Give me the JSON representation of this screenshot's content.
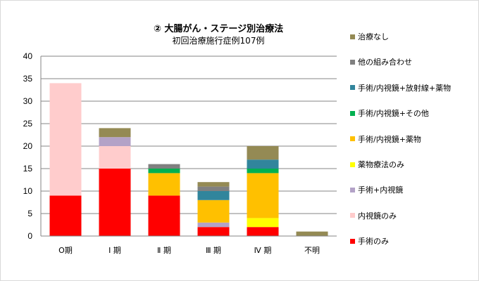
{
  "chart_data": {
    "type": "bar",
    "stacked": true,
    "title": "② 大腸がん・ステージ別治療法",
    "subtitle": "初回治療施行症例107例",
    "xlabel": "",
    "ylabel": "",
    "ylim": [
      0,
      40
    ],
    "yticks": [
      0,
      5,
      10,
      15,
      20,
      25,
      30,
      35,
      40
    ],
    "grid": true,
    "legend_position": "right",
    "categories": [
      "O期",
      "Ⅰ 期",
      "Ⅱ 期",
      "Ⅲ 期",
      "Ⅳ 期",
      "不明"
    ],
    "series": [
      {
        "name": "手術のみ",
        "color": "#FF0000",
        "values": [
          9,
          15,
          9,
          2,
          2,
          0
        ]
      },
      {
        "name": "内視鏡のみ",
        "color": "#FFCCCC",
        "values": [
          25,
          5,
          0,
          0,
          0,
          0
        ]
      },
      {
        "name": "手術+内視鏡",
        "color": "#B3A2C7",
        "values": [
          0,
          2,
          0,
          1,
          0,
          0
        ]
      },
      {
        "name": "薬物療法のみ",
        "color": "#FFFF00",
        "values": [
          0,
          0,
          0,
          0,
          2,
          0
        ]
      },
      {
        "name": "手術/内視鏡+薬物",
        "color": "#FFC000",
        "values": [
          0,
          0,
          5,
          5,
          10,
          0
        ]
      },
      {
        "name": "手術/内視鏡+その他",
        "color": "#00B050",
        "values": [
          0,
          0,
          1,
          0,
          1,
          0
        ]
      },
      {
        "name": "手術/内視鏡+放射線+薬物",
        "color": "#31859C",
        "values": [
          0,
          0,
          0,
          2,
          2,
          0
        ]
      },
      {
        "name": "他の組み合わせ",
        "color": "#808080",
        "values": [
          0,
          0,
          1,
          1,
          0,
          0
        ]
      },
      {
        "name": "治療なし",
        "color": "#948A54",
        "values": [
          0,
          2,
          0,
          1,
          3,
          1
        ]
      }
    ]
  }
}
